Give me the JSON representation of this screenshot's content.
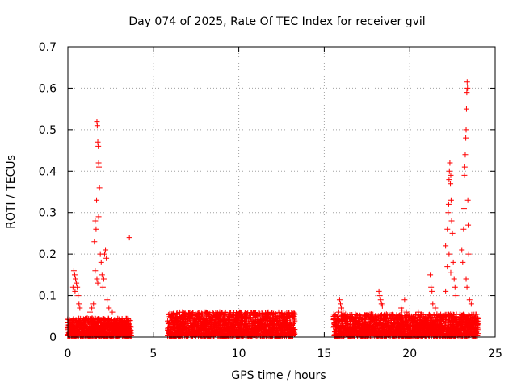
{
  "chart_data": {
    "type": "scatter",
    "title": "Day 074 of 2025, Rate Of TEC Index for receiver gvil",
    "xlabel": "GPS time / hours",
    "ylabel": "ROTI / TECUs",
    "xlim": [
      0,
      25
    ],
    "ylim": [
      0,
      0.7
    ],
    "xticks": [
      0,
      5,
      10,
      15,
      20,
      25
    ],
    "yticks": [
      0,
      0.1,
      0.2,
      0.3,
      0.4,
      0.5,
      0.6,
      0.7
    ],
    "xtick_labels": [
      "0",
      "5",
      "10",
      "15",
      "20",
      "25"
    ],
    "ytick_labels": [
      "0",
      "0.1",
      "0.2",
      "0.3",
      "0.4",
      "0.5",
      "0.6",
      "0.7"
    ],
    "grid": true,
    "marker": "+",
    "series_color": "#ff0000",
    "baseline_segments": [
      {
        "x_start": 0.0,
        "x_end": 3.7,
        "y_min": 0.0,
        "y_max": 0.045
      },
      {
        "x_start": 5.85,
        "x_end": 13.3,
        "y_min": 0.0,
        "y_max": 0.06
      },
      {
        "x_start": 15.55,
        "x_end": 24.0,
        "y_min": 0.0,
        "y_max": 0.055
      }
    ],
    "series": [
      {
        "name": "ROTI",
        "points": [
          [
            0.35,
            0.16
          ],
          [
            0.4,
            0.15
          ],
          [
            0.45,
            0.14
          ],
          [
            0.5,
            0.13
          ],
          [
            0.55,
            0.12
          ],
          [
            0.6,
            0.1
          ],
          [
            0.65,
            0.08
          ],
          [
            0.7,
            0.07
          ],
          [
            0.3,
            0.12
          ],
          [
            0.42,
            0.11
          ],
          [
            1.55,
            0.23
          ],
          [
            1.6,
            0.28
          ],
          [
            1.65,
            0.26
          ],
          [
            1.7,
            0.52
          ],
          [
            1.72,
            0.51
          ],
          [
            1.75,
            0.47
          ],
          [
            1.78,
            0.46
          ],
          [
            1.8,
            0.42
          ],
          [
            1.82,
            0.41
          ],
          [
            1.85,
            0.36
          ],
          [
            1.68,
            0.33
          ],
          [
            1.8,
            0.29
          ],
          [
            1.9,
            0.2
          ],
          [
            1.95,
            0.18
          ],
          [
            2.0,
            0.15
          ],
          [
            2.05,
            0.12
          ],
          [
            2.1,
            0.14
          ],
          [
            2.15,
            0.2
          ],
          [
            2.2,
            0.21
          ],
          [
            2.25,
            0.19
          ],
          [
            1.6,
            0.16
          ],
          [
            1.7,
            0.14
          ],
          [
            1.75,
            0.13
          ],
          [
            1.5,
            0.08
          ],
          [
            1.4,
            0.07
          ],
          [
            1.3,
            0.06
          ],
          [
            2.3,
            0.09
          ],
          [
            2.4,
            0.07
          ],
          [
            2.6,
            0.06
          ],
          [
            3.6,
            0.24
          ],
          [
            6.7,
            0.06
          ],
          [
            8.2,
            0.05
          ],
          [
            10.0,
            0.055
          ],
          [
            11.5,
            0.05
          ],
          [
            15.9,
            0.09
          ],
          [
            15.95,
            0.08
          ],
          [
            16.0,
            0.07
          ],
          [
            16.1,
            0.065
          ],
          [
            15.85,
            0.06
          ],
          [
            18.2,
            0.11
          ],
          [
            18.25,
            0.1
          ],
          [
            18.3,
            0.09
          ],
          [
            18.35,
            0.08
          ],
          [
            18.4,
            0.075
          ],
          [
            19.5,
            0.07
          ],
          [
            19.55,
            0.065
          ],
          [
            19.7,
            0.09
          ],
          [
            19.8,
            0.06
          ],
          [
            20.5,
            0.06
          ],
          [
            21.2,
            0.15
          ],
          [
            21.25,
            0.12
          ],
          [
            21.3,
            0.11
          ],
          [
            21.35,
            0.08
          ],
          [
            21.5,
            0.07
          ],
          [
            22.1,
            0.22
          ],
          [
            22.2,
            0.26
          ],
          [
            22.25,
            0.3
          ],
          [
            22.28,
            0.32
          ],
          [
            22.3,
            0.38
          ],
          [
            22.32,
            0.4
          ],
          [
            22.35,
            0.42
          ],
          [
            22.38,
            0.37
          ],
          [
            22.4,
            0.39
          ],
          [
            22.42,
            0.33
          ],
          [
            22.45,
            0.28
          ],
          [
            22.5,
            0.25
          ],
          [
            22.55,
            0.18
          ],
          [
            22.6,
            0.14
          ],
          [
            22.65,
            0.12
          ],
          [
            22.7,
            0.1
          ],
          [
            22.4,
            0.155
          ],
          [
            22.3,
            0.2
          ],
          [
            22.2,
            0.17
          ],
          [
            22.1,
            0.11
          ],
          [
            23.05,
            0.21
          ],
          [
            23.1,
            0.18
          ],
          [
            23.15,
            0.26
          ],
          [
            23.18,
            0.31
          ],
          [
            23.2,
            0.39
          ],
          [
            23.22,
            0.41
          ],
          [
            23.25,
            0.44
          ],
          [
            23.28,
            0.48
          ],
          [
            23.3,
            0.5
          ],
          [
            23.32,
            0.55
          ],
          [
            23.34,
            0.59
          ],
          [
            23.36,
            0.615
          ],
          [
            23.38,
            0.6
          ],
          [
            23.4,
            0.33
          ],
          [
            23.42,
            0.27
          ],
          [
            23.45,
            0.2
          ],
          [
            23.3,
            0.14
          ],
          [
            23.35,
            0.12
          ],
          [
            23.5,
            0.09
          ],
          [
            23.6,
            0.08
          ]
        ]
      }
    ]
  }
}
